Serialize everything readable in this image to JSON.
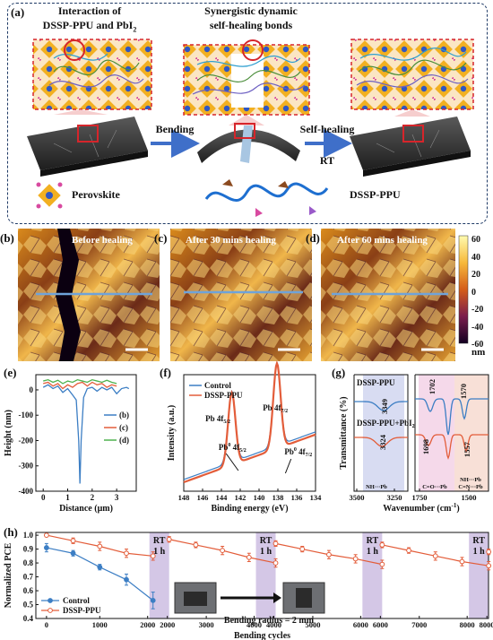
{
  "panel_a": {
    "label": "(a)",
    "title_left_1": "Interaction of",
    "title_left_2": "DSSP-PPU and PbI",
    "title_left_sub": "2",
    "title_mid_1": "Synergistic dynamic",
    "title_mid_2": "self-healing bonds",
    "arrow1": "Bending",
    "arrow2": "Self-healing",
    "arrow2_sub": "RT",
    "legend_perovskite": "Perovskite",
    "legend_polymer": "DSSP-PPU",
    "colors": {
      "border": "#1f3a66",
      "dash_red": "#d6252b",
      "arrow": "#3f6fc9",
      "crystal": "#f2b021",
      "ion": "#2f57c3"
    }
  },
  "panel_bcd": {
    "b_label": "(b)",
    "b_text": "Before healing",
    "c_label": "(c)",
    "c_text": "After 30 mins healing",
    "d_label": "(d)",
    "d_text": "After 60 mins healing",
    "colorbar_ticks": [
      "60",
      "40",
      "20",
      "0",
      "-20",
      "-40",
      "-60"
    ],
    "colorbar_unit": "nm"
  },
  "chart_data": [
    {
      "panel": "(e)",
      "type": "line",
      "xlabel": "Distance (μm)",
      "ylabel": "Height (nm)",
      "xlim": [
        -0.3,
        3.8
      ],
      "ylim": [
        -400,
        60
      ],
      "xticks": [
        "0",
        "1",
        "2",
        "3"
      ],
      "yticks": [
        "0",
        "-100",
        "-200",
        "-300",
        "-400"
      ],
      "series": [
        {
          "name": "(b)",
          "color": "#3c7ec4",
          "x": [
            0,
            0.2,
            0.4,
            0.6,
            0.8,
            1.0,
            1.2,
            1.35,
            1.45,
            1.5,
            1.55,
            1.65,
            1.8,
            2.0,
            2.2,
            2.4,
            2.6,
            2.8,
            3.0,
            3.2,
            3.4,
            3.5
          ],
          "y": [
            10,
            20,
            5,
            15,
            -10,
            5,
            -20,
            -40,
            -200,
            -370,
            -200,
            -30,
            5,
            10,
            -5,
            10,
            0,
            10,
            -15,
            5,
            10,
            5
          ]
        },
        {
          "name": "(c)",
          "color": "#e35d3a",
          "x": [
            0,
            0.2,
            0.4,
            0.6,
            0.8,
            1.0,
            1.2,
            1.4,
            1.6,
            1.8,
            2.0,
            2.2,
            2.4,
            2.6,
            2.8,
            3.0
          ],
          "y": [
            25,
            30,
            15,
            25,
            5,
            20,
            10,
            25,
            30,
            15,
            30,
            20,
            25,
            10,
            20,
            15
          ]
        },
        {
          "name": "(d)",
          "color": "#4fb24f",
          "x": [
            0,
            0.2,
            0.4,
            0.6,
            0.8,
            1.0,
            1.2,
            1.4,
            1.6,
            1.8,
            2.0,
            2.2,
            2.4,
            2.6,
            2.8,
            3.0
          ],
          "y": [
            35,
            40,
            30,
            38,
            25,
            35,
            30,
            40,
            35,
            30,
            40,
            35,
            30,
            38,
            30,
            25
          ]
        }
      ]
    },
    {
      "panel": "(f)",
      "type": "line",
      "xlabel": "Binding energy (eV)",
      "ylabel": "Intensity (a.u.)",
      "xlim": [
        148,
        134
      ],
      "xticks": [
        "148",
        "146",
        "144",
        "142",
        "140",
        "138",
        "136",
        "134"
      ],
      "series": [
        {
          "name": "Control",
          "color": "#3c7ec4"
        },
        {
          "name": "DSSP-PPU",
          "color": "#e35d3a"
        }
      ],
      "peaks": [
        142.9,
        138.1
      ],
      "annotations": [
        "Pb 4f",
        "5/2",
        "Pb 4f",
        "7/2",
        "Pb",
        "0",
        "4f",
        "5/2",
        "Pb",
        "0",
        "4f",
        "7/2"
      ]
    },
    {
      "panel": "(g)",
      "type": "line",
      "xlabel": "Wavenumber (cm",
      "xlabel_sup": "-1",
      "xlabel_end": ")",
      "ylabel": "Transmittance (%)",
      "xticks": [
        "3500",
        "3250",
        "1750",
        "1500"
      ],
      "series": [
        {
          "name": "DSSP-PPU",
          "color": "#3c7ec4"
        },
        {
          "name": "DSSP-PPU+PbI",
          "name_sub": "2",
          "color": "#e35d3a"
        }
      ],
      "peak_labels": [
        "3349",
        "3324",
        "1702",
        "1698",
        "1570",
        "1557"
      ],
      "band_labels": [
        "NH···Pb",
        "C=O···Pb",
        "NH···Pb",
        "C=N···Pb"
      ]
    },
    {
      "panel": "(h)",
      "type": "line",
      "xlabel": "Bending cycles",
      "ylabel": "Normalized PCE",
      "xlim": [
        -200,
        8300
      ],
      "ylim": [
        0.4,
        1.02
      ],
      "xticks": [
        "0",
        "1000",
        "2000",
        "2000",
        "3000",
        "4000",
        "4000",
        "5000",
        "6000",
        "6000",
        "7000",
        "8000",
        "8000"
      ],
      "yticks": [
        "0.4",
        "0.5",
        "0.6",
        "0.7",
        "0.8",
        "0.9",
        "1.0"
      ],
      "rt_label_1": "RT",
      "rt_label_2": "1 h",
      "bending_radius": "Bending radius = 2 mm",
      "series": [
        {
          "name": "Control",
          "color": "#3c7ec4",
          "x": [
            0,
            500,
            1000,
            1500,
            2000
          ],
          "y": [
            0.91,
            0.87,
            0.77,
            0.68,
            0.53
          ],
          "err": [
            0.03,
            0.02,
            0.02,
            0.04,
            0.06
          ]
        },
        {
          "name": "DSSP-PPU",
          "color": "#e35d3a",
          "x": [
            0,
            500,
            1000,
            1500,
            2000,
            2000,
            2500,
            3000,
            3500,
            4000,
            4000,
            4500,
            5000,
            5500,
            6000,
            6000,
            6500,
            7000,
            7500,
            8000,
            8000
          ],
          "y": [
            1.0,
            0.96,
            0.92,
            0.87,
            0.85,
            0.97,
            0.93,
            0.89,
            0.84,
            0.8,
            0.94,
            0.9,
            0.86,
            0.83,
            0.79,
            0.93,
            0.89,
            0.85,
            0.81,
            0.78,
            0.88
          ],
          "err": [
            0.01,
            0.02,
            0.03,
            0.03,
            0.03,
            0.02,
            0.02,
            0.03,
            0.03,
            0.03,
            0.02,
            0.02,
            0.03,
            0.03,
            0.03,
            0.02,
            0.02,
            0.03,
            0.03,
            0.03,
            0.02
          ]
        }
      ]
    }
  ]
}
